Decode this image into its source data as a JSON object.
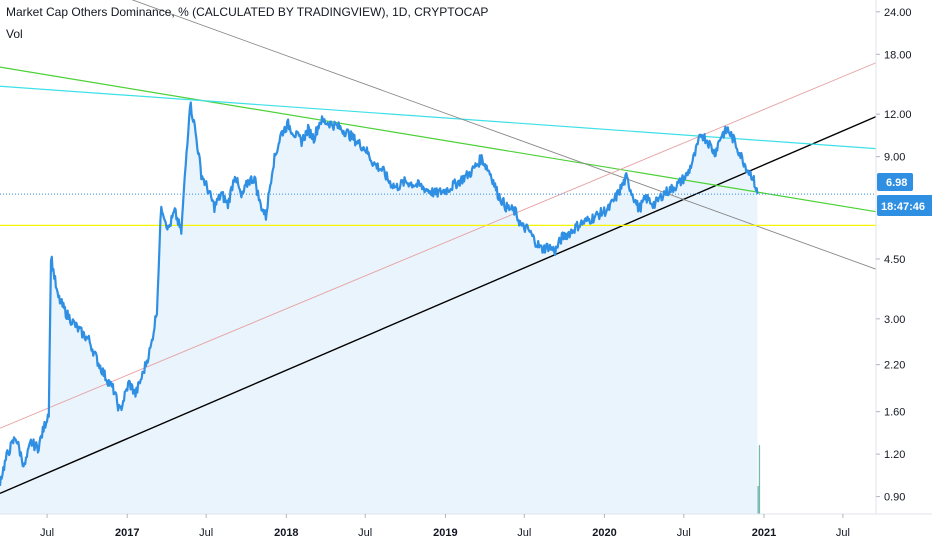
{
  "legend": {
    "title": "Market Cap Others Dominance, % (CALCULATED BY TRADINGVIEW), 1D, CRYPTOCAP",
    "indicator": "Vol"
  },
  "colors": {
    "price_line": "#2f8fe3",
    "price_fill": "#eaf4fd",
    "badge": "#2f8fe3",
    "trend_black": "#000000",
    "trend_green": "#4cd137",
    "trend_cyan": "#3ee0e8",
    "trend_gray": "#8a8a8a",
    "trend_pink": "#e6a1a1",
    "support_yellow": "#f5f500",
    "vol_up": "#4a9f97",
    "vol_down": "#e56f6f"
  },
  "price_badge": {
    "value": "6.98",
    "countdown": "18:47:46"
  },
  "chart_data": {
    "type": "line",
    "y_axis": {
      "scale": "log",
      "range": [
        0.8,
        26
      ],
      "ticks": [
        "24.00",
        "18.00",
        "12.00",
        "9.00",
        "6.98",
        "4.50",
        "3.00",
        "2.20",
        "1.60",
        "1.20",
        "0.90"
      ]
    },
    "x_axis": {
      "range": [
        "2016-03-15",
        "2021-09-15"
      ],
      "ticks": [
        {
          "label": "Jul",
          "date": "2016-07-01",
          "bold": false
        },
        {
          "label": "2017",
          "date": "2017-01-01",
          "bold": true
        },
        {
          "label": "Jul",
          "date": "2017-07-01",
          "bold": false
        },
        {
          "label": "2018",
          "date": "2018-01-01",
          "bold": true
        },
        {
          "label": "Jul",
          "date": "2018-07-01",
          "bold": false
        },
        {
          "label": "2019",
          "date": "2019-01-01",
          "bold": true
        },
        {
          "label": "Jul",
          "date": "2019-07-01",
          "bold": false
        },
        {
          "label": "2020",
          "date": "2020-01-01",
          "bold": true
        },
        {
          "label": "Jul",
          "date": "2020-07-01",
          "bold": false
        },
        {
          "label": "2021",
          "date": "2021-01-01",
          "bold": true
        },
        {
          "label": "Jul",
          "date": "2021-07-01",
          "bold": false
        }
      ]
    },
    "series": [
      {
        "values": [
          [
            "2016-03-15",
            1.0
          ],
          [
            "2016-04-01",
            1.2
          ],
          [
            "2016-04-20",
            1.35
          ],
          [
            "2016-05-10",
            1.1
          ],
          [
            "2016-05-25",
            1.3
          ],
          [
            "2016-06-10",
            1.25
          ],
          [
            "2016-06-25",
            1.45
          ],
          [
            "2016-07-05",
            1.6
          ],
          [
            "2016-07-10",
            4.6
          ],
          [
            "2016-07-25",
            3.5
          ],
          [
            "2016-08-15",
            3.1
          ],
          [
            "2016-09-10",
            2.8
          ],
          [
            "2016-10-05",
            2.6
          ],
          [
            "2016-10-25",
            2.25
          ],
          [
            "2016-11-10",
            2.05
          ],
          [
            "2016-12-01",
            1.85
          ],
          [
            "2016-12-15",
            1.6
          ],
          [
            "2017-01-05",
            1.95
          ],
          [
            "2017-01-20",
            1.8
          ],
          [
            "2017-02-05",
            2.05
          ],
          [
            "2017-02-25",
            2.5
          ],
          [
            "2017-03-10",
            3.2
          ],
          [
            "2017-03-20",
            6.5
          ],
          [
            "2017-04-05",
            5.5
          ],
          [
            "2017-04-20",
            6.2
          ],
          [
            "2017-05-05",
            5.4
          ],
          [
            "2017-05-15",
            8.5
          ],
          [
            "2017-05-25",
            13.0
          ],
          [
            "2017-06-05",
            11.0
          ],
          [
            "2017-06-20",
            8.0
          ],
          [
            "2017-07-05",
            7.2
          ],
          [
            "2017-07-20",
            6.4
          ],
          [
            "2017-08-05",
            7.0
          ],
          [
            "2017-08-20",
            6.5
          ],
          [
            "2017-09-05",
            8.0
          ],
          [
            "2017-09-20",
            6.8
          ],
          [
            "2017-10-05",
            7.6
          ],
          [
            "2017-10-20",
            7.8
          ],
          [
            "2017-11-01",
            6.6
          ],
          [
            "2017-11-15",
            6.0
          ],
          [
            "2017-12-01",
            8.5
          ],
          [
            "2017-12-20",
            10.5
          ],
          [
            "2018-01-05",
            11.2
          ],
          [
            "2018-01-20",
            10.5
          ],
          [
            "2018-02-05",
            10.0
          ],
          [
            "2018-02-20",
            10.8
          ],
          [
            "2018-03-05",
            10.2
          ],
          [
            "2018-03-20",
            11.5
          ],
          [
            "2018-04-10",
            11.3
          ],
          [
            "2018-05-01",
            11.0
          ],
          [
            "2018-05-20",
            10.6
          ],
          [
            "2018-06-10",
            10.0
          ],
          [
            "2018-07-01",
            9.5
          ],
          [
            "2018-07-20",
            8.6
          ],
          [
            "2018-08-10",
            8.2
          ],
          [
            "2018-08-25",
            7.6
          ],
          [
            "2018-09-10",
            7.3
          ],
          [
            "2018-10-01",
            7.6
          ],
          [
            "2018-11-01",
            7.4
          ],
          [
            "2018-11-20",
            7.2
          ],
          [
            "2018-12-10",
            7.0
          ],
          [
            "2019-01-05",
            7.2
          ],
          [
            "2019-02-01",
            7.6
          ],
          [
            "2019-03-01",
            8.1
          ],
          [
            "2019-03-25",
            8.9
          ],
          [
            "2019-04-15",
            8.0
          ],
          [
            "2019-05-01",
            7.0
          ],
          [
            "2019-05-20",
            6.4
          ],
          [
            "2019-06-10",
            6.2
          ],
          [
            "2019-06-25",
            5.6
          ],
          [
            "2019-07-10",
            5.5
          ],
          [
            "2019-07-25",
            5.1
          ],
          [
            "2019-08-10",
            4.8
          ],
          [
            "2019-08-25",
            4.9
          ],
          [
            "2019-09-10",
            4.75
          ],
          [
            "2019-09-25",
            5.2
          ],
          [
            "2019-10-15",
            5.4
          ],
          [
            "2019-11-05",
            5.7
          ],
          [
            "2019-12-01",
            5.9
          ],
          [
            "2019-12-20",
            6.1
          ],
          [
            "2020-01-10",
            6.3
          ],
          [
            "2020-02-01",
            7.0
          ],
          [
            "2020-02-20",
            7.8
          ],
          [
            "2020-03-05",
            7.0
          ],
          [
            "2020-03-20",
            6.3
          ],
          [
            "2020-04-05",
            6.8
          ],
          [
            "2020-04-25",
            6.5
          ],
          [
            "2020-05-15",
            7.0
          ],
          [
            "2020-06-01",
            7.2
          ],
          [
            "2020-06-20",
            7.5
          ],
          [
            "2020-07-10",
            8.0
          ],
          [
            "2020-07-25",
            9.0
          ],
          [
            "2020-08-10",
            10.5
          ],
          [
            "2020-08-25",
            10.0
          ],
          [
            "2020-09-10",
            9.2
          ],
          [
            "2020-09-25",
            10.4
          ],
          [
            "2020-10-10",
            10.8
          ],
          [
            "2020-10-25",
            10.0
          ],
          [
            "2020-11-10",
            9.0
          ],
          [
            "2020-11-25",
            8.2
          ],
          [
            "2020-12-05",
            7.9
          ],
          [
            "2020-12-12",
            7.4
          ],
          [
            "2020-12-17",
            6.98
          ]
        ]
      }
    ],
    "trendlines": [
      {
        "color_key": "trend_black",
        "width": 1.4,
        "p1": [
          "2016-03-15",
          0.92
        ],
        "p2": [
          "2021-09-15",
          11.8
        ]
      },
      {
        "color_key": "trend_green",
        "width": 1.2,
        "p1": [
          "2016-03-15",
          16.5
        ],
        "p2": [
          "2021-09-15",
          6.2
        ]
      },
      {
        "color_key": "trend_cyan",
        "width": 1.2,
        "p1": [
          "2016-03-15",
          14.5
        ],
        "p2": [
          "2021-09-15",
          9.5
        ]
      },
      {
        "color_key": "trend_gray",
        "width": 0.9,
        "p1": [
          "2016-03-15",
          36.0
        ],
        "p2": [
          "2021-09-15",
          4.2
        ]
      },
      {
        "color_key": "trend_pink",
        "width": 0.9,
        "p1": [
          "2016-03-15",
          1.43
        ],
        "p2": [
          "2021-09-15",
          17.0
        ]
      }
    ],
    "hlines": [
      {
        "color_key": "support_yellow",
        "value": 5.65
      }
    ],
    "volume": {
      "start": "2017-10-01",
      "end": "2020-12-20"
    }
  }
}
